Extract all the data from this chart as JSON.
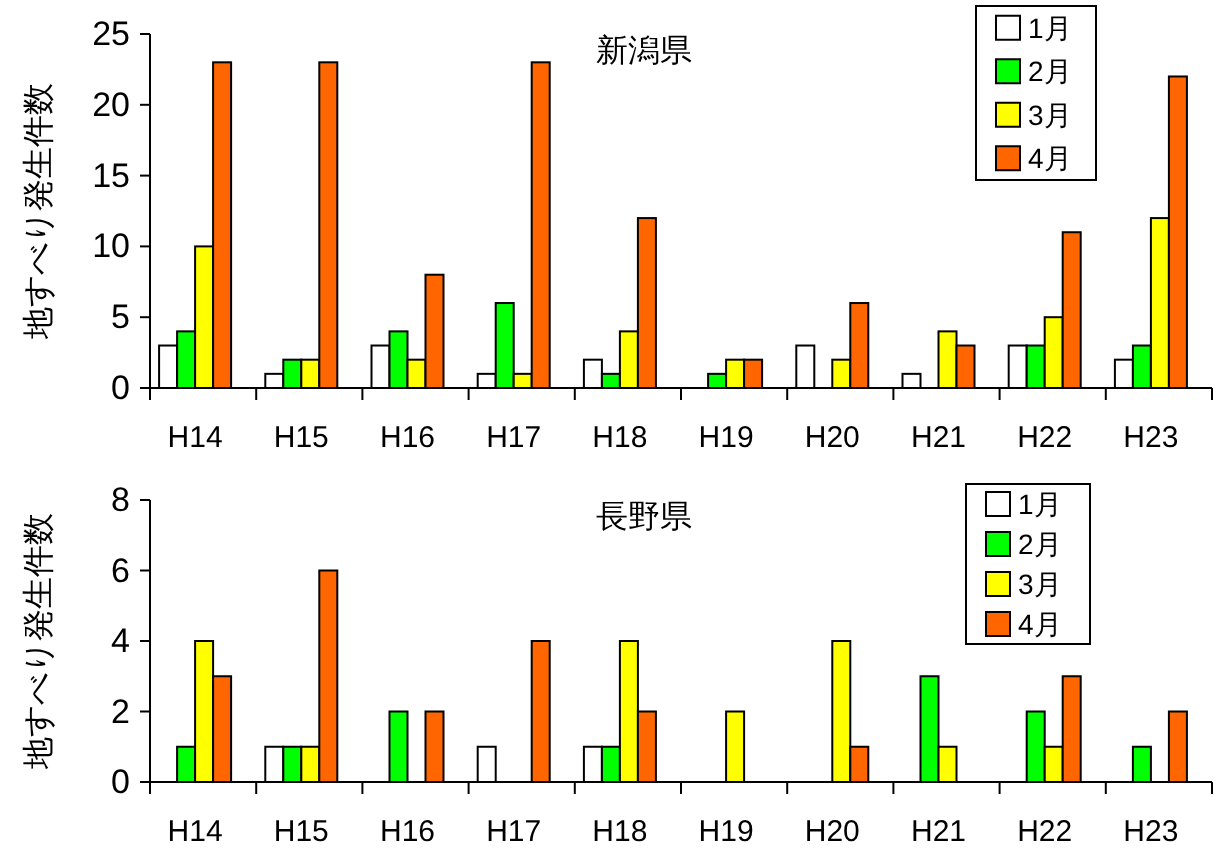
{
  "chart_data": [
    {
      "type": "bar",
      "title": "新潟県",
      "ylabel": "地すべり発生件数",
      "categories": [
        "H14",
        "H15",
        "H16",
        "H17",
        "H18",
        "H19",
        "H20",
        "H21",
        "H22",
        "H23"
      ],
      "ylim": [
        0,
        25
      ],
      "yticks": [
        0,
        5,
        10,
        15,
        20,
        25
      ],
      "grid": false,
      "legend": "top right",
      "series": [
        {
          "name": "1月",
          "color": "#ffffff",
          "values": [
            3,
            1,
            3,
            1,
            2,
            0,
            3,
            1,
            3,
            2
          ]
        },
        {
          "name": "2月",
          "color": "#00ff00",
          "values": [
            4,
            2,
            4,
            6,
            1,
            1,
            0,
            0,
            3,
            3
          ]
        },
        {
          "name": "3月",
          "color": "#ffff00",
          "values": [
            10,
            2,
            2,
            1,
            4,
            2,
            2,
            4,
            5,
            12
          ]
        },
        {
          "name": "4月",
          "color": "#ff6600",
          "values": [
            23,
            23,
            8,
            23,
            12,
            2,
            6,
            3,
            11,
            22
          ]
        }
      ]
    },
    {
      "type": "bar",
      "title": "長野県",
      "ylabel": "地すべり発生件数",
      "categories": [
        "H14",
        "H15",
        "H16",
        "H17",
        "H18",
        "H19",
        "H20",
        "H21",
        "H22",
        "H23"
      ],
      "ylim": [
        0,
        8
      ],
      "yticks": [
        0,
        2,
        4,
        6,
        8
      ],
      "grid": false,
      "legend": "top right",
      "series": [
        {
          "name": "1月",
          "color": "#ffffff",
          "values": [
            0,
            1,
            0,
            1,
            1,
            0,
            0,
            0,
            0,
            0
          ]
        },
        {
          "name": "2月",
          "color": "#00ff00",
          "values": [
            1,
            1,
            2,
            0,
            1,
            0,
            0,
            3,
            2,
            1
          ]
        },
        {
          "name": "3月",
          "color": "#ffff00",
          "values": [
            4,
            1,
            0,
            0,
            4,
            2,
            4,
            1,
            1,
            0
          ]
        },
        {
          "name": "4月",
          "color": "#ff6600",
          "values": [
            3,
            6,
            2,
            4,
            2,
            0,
            1,
            0,
            3,
            2
          ]
        }
      ]
    }
  ]
}
